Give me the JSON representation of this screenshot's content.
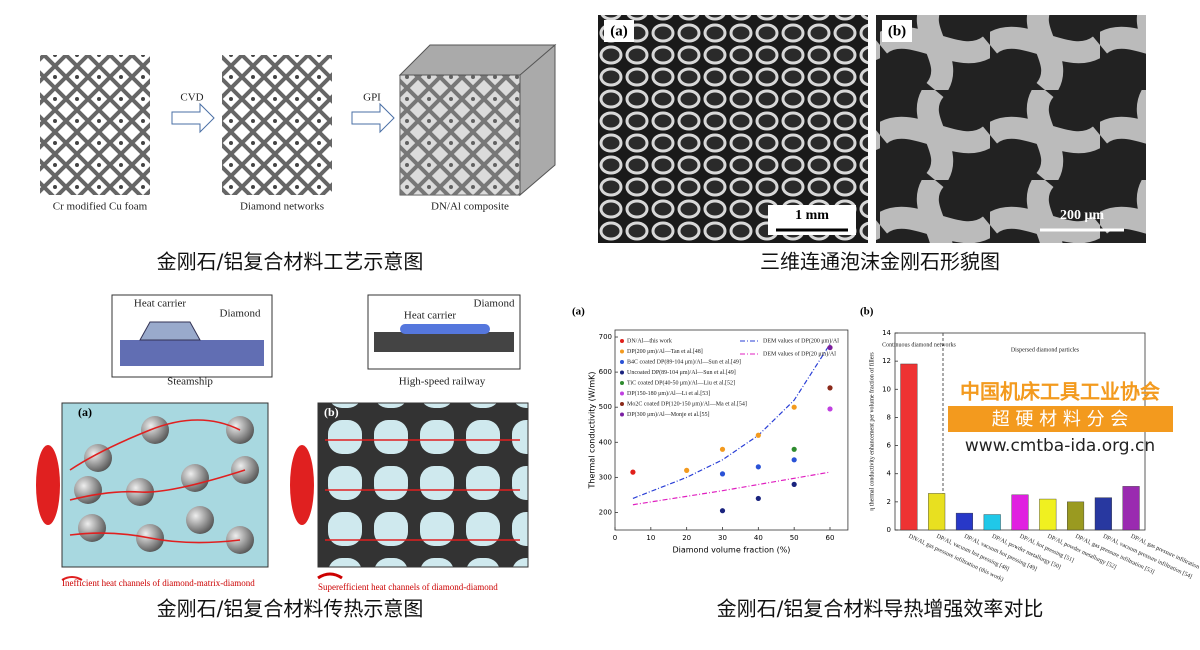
{
  "process": {
    "caption": "金刚石/铝复合材料工艺示意图",
    "labels": [
      "Cr modified Cu foam",
      "CVD",
      "Diamond networks",
      "GPI",
      "DN/Al composite"
    ]
  },
  "morphology": {
    "caption": "三维连通泡沫金刚石形貌图",
    "labels": [
      "(a)",
      "(b)",
      "1 mm",
      "200 μm"
    ]
  },
  "heat_transfer": {
    "caption": "金刚石/铝复合材料传热示意图",
    "labels": [
      "Heat carrier",
      "Diamond",
      "Steamship",
      "Heat carrier",
      "Diamond",
      "High-speed railway",
      "(a)",
      "(b)",
      "Inefficient heat channels of diamond-matrix-diamond",
      "Superefficient heat channels of diamond-diamond"
    ]
  },
  "comparison": {
    "caption": "金刚石/铝复合材料导热增强效率对比"
  },
  "watermark": {
    "line1": "中国机床工具工业协会",
    "line2": "超 硬 材 料 分 会",
    "line3": "www.cmtba-ida.org.cn"
  },
  "chart_data": [
    {
      "type": "scatter",
      "panel": "(a)",
      "xlabel": "Diamond volume fraction (%)",
      "ylabel": "Thermal conductivity (W/mK)",
      "xlim": [
        0,
        65
      ],
      "xticks": [
        0,
        10,
        20,
        30,
        40,
        50,
        60
      ],
      "ylim": [
        150,
        720
      ],
      "yticks": [
        200,
        300,
        400,
        500,
        600,
        700
      ],
      "series": [
        {
          "name": "DN/Al—this work",
          "color": "#e0201b",
          "x": [
            5
          ],
          "values": [
            315
          ]
        },
        {
          "name": "DP(200 μm)/Al—Tan et al.[48]",
          "color": "#f39a1e",
          "x": [
            20,
            30,
            40,
            50,
            60
          ],
          "values": [
            320,
            380,
            420,
            500,
            670
          ]
        },
        {
          "name": "B4C coated DP(89-104 μm)/Al—Sun et al.[49]",
          "color": "#2a52d6",
          "x": [
            30,
            40,
            50
          ],
          "values": [
            310,
            330,
            350
          ]
        },
        {
          "name": "Uncoated DP(89-104 μm)/Al—Sun et al.[49]",
          "color": "#1a237e",
          "x": [
            30,
            40,
            50
          ],
          "values": [
            205,
            240,
            280
          ]
        },
        {
          "name": "TiC coated DP(40-50 μm)/Al—Liu et al.[52]",
          "color": "#2e8b2e",
          "x": [
            50
          ],
          "values": [
            380
          ]
        },
        {
          "name": "DP(150-180 μm)/Al—Li et al.[53]",
          "color": "#c040e0",
          "x": [
            60
          ],
          "values": [
            495
          ]
        },
        {
          "name": "Mo2C coated DP(120-150 μm)/Al—Ma et al.[54]",
          "color": "#8b2a1a",
          "x": [
            60
          ],
          "values": [
            555
          ]
        },
        {
          "name": "DP(300 μm)/Al—Monje et al.[55]",
          "color": "#7a1fa2",
          "x": [
            60
          ],
          "values": [
            670
          ]
        }
      ],
      "lines": [
        {
          "name": "DEM values of DP(200 μm)/Al",
          "color": "#2a3fd6",
          "x": [
            5,
            20,
            30,
            40,
            50,
            60
          ],
          "values": [
            240,
            300,
            350,
            420,
            520,
            680
          ]
        },
        {
          "name": "DEM values of DP(20 μm)/Al",
          "color": "#e020c0",
          "x": [
            5,
            30,
            60
          ],
          "values": [
            222,
            262,
            315
          ]
        }
      ]
    },
    {
      "type": "bar",
      "panel": "(b)",
      "ylabel": "η thermal conductivity enhancement per volume fraction of fillers",
      "ylim": [
        0,
        14
      ],
      "yticks": [
        0,
        2,
        4,
        6,
        8,
        10,
        12,
        14
      ],
      "annotations": [
        "Continuous diamond networks",
        "Dispersed diamond particles"
      ],
      "categories": [
        "DN/Al, gas pressure infiltration (this work)",
        "DP/Al, vacuum hot pressing [48]",
        "DP/Al, vacuum hot pressing [49]",
        "DP/Al, powder metallurgy [50]",
        "DP/Al, hot pressing [51]",
        "DP/Al, powder metallurgy [52]",
        "DP/Al, gas pressure infiltration [53]",
        "DP/Al, vacuum pressure infiltration [54]",
        "DP/Al, gas pressure infiltration [55]"
      ],
      "values": [
        11.8,
        2.6,
        1.2,
        1.1,
        2.5,
        2.2,
        2.0,
        2.3,
        3.1
      ],
      "colors": [
        "#ee3333",
        "#e8e020",
        "#2838c8",
        "#20c8e8",
        "#e020e0",
        "#f0f020",
        "#9a9a20",
        "#2838a0",
        "#9a2ab0"
      ]
    }
  ]
}
